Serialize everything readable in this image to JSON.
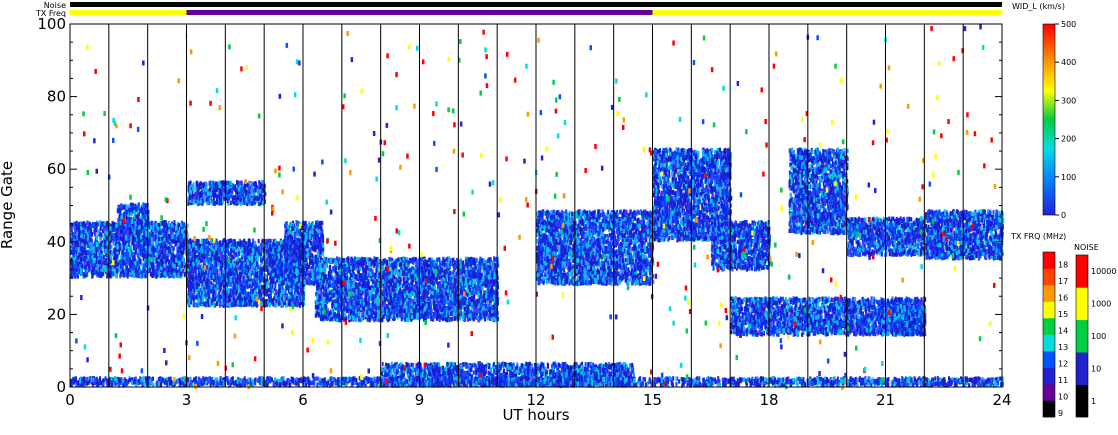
{
  "chart_data": {
    "type": "heatmap",
    "xlabel": "UT hours",
    "ylabel": "Range Gate",
    "xlim": [
      0,
      24
    ],
    "ylim": [
      0,
      100
    ],
    "x_ticks": [
      "0",
      "3",
      "6",
      "9",
      "12",
      "15",
      "18",
      "21",
      "24"
    ],
    "y_ticks": [
      "0",
      "20",
      "40",
      "60",
      "80",
      "100"
    ],
    "grid": "vertical lines every hour",
    "top_bars": {
      "noise_label": "Noise",
      "txfreq_label": "TX Freq",
      "noise_color": "#000000",
      "txfreq_segments": [
        {
          "start": 0,
          "end": 3,
          "color": "#ffff00"
        },
        {
          "start": 3,
          "end": 15,
          "color": "#660099"
        },
        {
          "start": 15,
          "end": 24,
          "color": "#ffff00"
        }
      ]
    },
    "width_colorbar": {
      "title": "WID_L (km/s)",
      "ticks": [
        "0",
        "100",
        "200",
        "300",
        "400",
        "500"
      ],
      "range": [
        0,
        500
      ]
    },
    "freq_colorbar": {
      "title": "TX FRQ (MHz)",
      "ticks": [
        "9",
        "10",
        "11",
        "12",
        "13",
        "14",
        "15",
        "16",
        "17",
        "18"
      ],
      "colors": [
        "#000000",
        "#660099",
        "#2222cc",
        "#0055ff",
        "#00dddd",
        "#00cc44",
        "#ffff00",
        "#ff9900",
        "#ff4400",
        "#ff0000"
      ]
    },
    "noise_colorbar": {
      "title": "NOISE",
      "ticks": [
        "1",
        "10",
        "100",
        "1000",
        "10000"
      ],
      "colors": [
        "#000000",
        "#2222cc",
        "#00cc44",
        "#ffff00",
        "#ff0000"
      ]
    },
    "echo_regions": [
      {
        "t0": 0.0,
        "t1": 3.0,
        "g0": 30,
        "g1": 45
      },
      {
        "t0": 1.2,
        "t1": 2.0,
        "g0": 40,
        "g1": 50
      },
      {
        "t0": 3.0,
        "t1": 6.0,
        "g0": 22,
        "g1": 40
      },
      {
        "t0": 3.0,
        "t1": 5.0,
        "g0": 50,
        "g1": 56
      },
      {
        "t0": 5.5,
        "t1": 6.5,
        "g0": 28,
        "g1": 45
      },
      {
        "t0": 6.3,
        "t1": 11.0,
        "g0": 18,
        "g1": 35
      },
      {
        "t0": 8.0,
        "t1": 14.5,
        "g0": 0,
        "g1": 6
      },
      {
        "t0": 12.0,
        "t1": 15.0,
        "g0": 28,
        "g1": 48
      },
      {
        "t0": 15.0,
        "t1": 17.0,
        "g0": 40,
        "g1": 65
      },
      {
        "t0": 16.5,
        "t1": 18.0,
        "g0": 32,
        "g1": 45
      },
      {
        "t0": 17.0,
        "t1": 22.0,
        "g0": 14,
        "g1": 24
      },
      {
        "t0": 18.5,
        "t1": 20.0,
        "g0": 42,
        "g1": 65
      },
      {
        "t0": 20.0,
        "t1": 22.0,
        "g0": 36,
        "g1": 46
      },
      {
        "t0": 22.0,
        "t1": 24.0,
        "g0": 35,
        "g1": 48
      },
      {
        "t0": 21.0,
        "t1": 22.0,
        "g0": 14,
        "g1": 22
      },
      {
        "t0": 0.0,
        "t1": 24.0,
        "g0": 0,
        "g1": 2
      }
    ]
  }
}
